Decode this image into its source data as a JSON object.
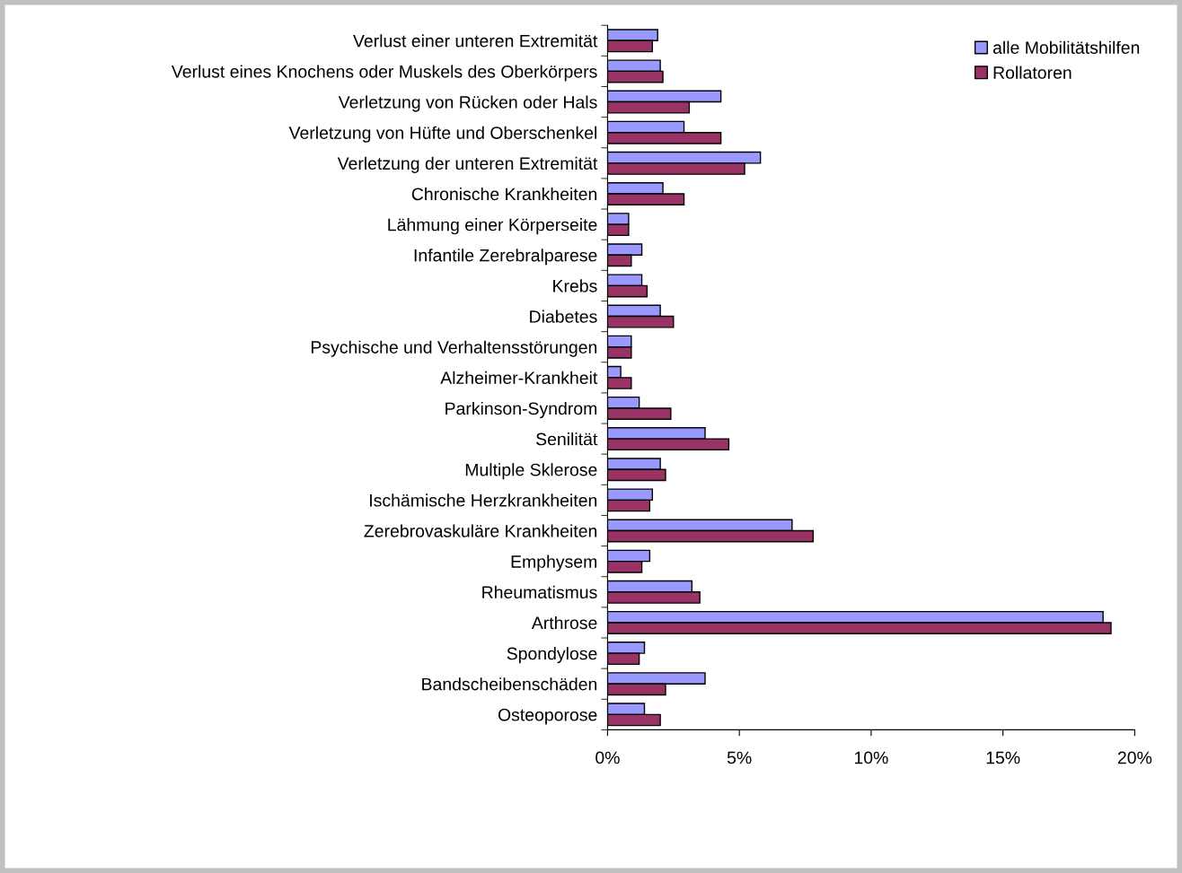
{
  "chart_data": {
    "type": "bar",
    "orientation": "horizontal",
    "categories": [
      "Verlust einer unteren Extremität",
      "Verlust eines Knochens oder Muskels des Oberkörpers",
      "Verletzung von Rücken oder Hals",
      "Verletzung von Hüfte und Oberschenkel",
      "Verletzung der unteren Extremität",
      "Chronische Krankheiten",
      "Lähmung einer Körperseite",
      "Infantile Zerebralparese",
      "Krebs",
      "Diabetes",
      "Psychische und Verhaltensstörungen",
      "Alzheimer-Krankheit",
      "Parkinson-Syndrom",
      "Senilität",
      "Multiple Sklerose",
      "Ischämische Herzkrankheiten",
      "Zerebrovaskuläre Krankheiten",
      "Emphysem",
      "Rheumatismus",
      "Arthrose",
      "Spondylose",
      "Bandscheibenschäden",
      "Osteoporose"
    ],
    "series": [
      {
        "name": "alle Mobilitätshilfen",
        "color": "#9999ff",
        "values": [
          1.9,
          2.0,
          4.3,
          2.9,
          5.8,
          2.1,
          0.8,
          1.3,
          1.3,
          2.0,
          0.9,
          0.5,
          1.2,
          3.7,
          2.0,
          1.7,
          7.0,
          1.6,
          3.2,
          18.8,
          1.4,
          3.7,
          1.4
        ]
      },
      {
        "name": "Rollatoren",
        "color": "#993366",
        "values": [
          1.7,
          2.1,
          3.1,
          4.3,
          5.2,
          2.9,
          0.8,
          0.9,
          1.5,
          2.5,
          0.9,
          0.9,
          2.4,
          4.6,
          2.2,
          1.6,
          7.8,
          1.3,
          3.5,
          19.1,
          1.2,
          2.2,
          2.0
        ]
      }
    ],
    "xlim": [
      0,
      20
    ],
    "xticks": [
      {
        "value": 0,
        "label": "0%"
      },
      {
        "value": 5,
        "label": "5%"
      },
      {
        "value": 10,
        "label": "10%"
      },
      {
        "value": 15,
        "label": "15%"
      },
      {
        "value": 20,
        "label": "20%"
      }
    ],
    "grid": false,
    "legend": "top right"
  }
}
